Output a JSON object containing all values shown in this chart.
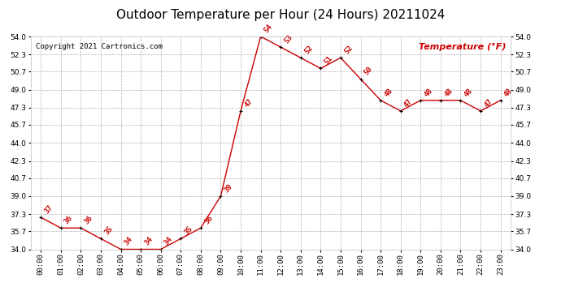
{
  "title": "Outdoor Temperature per Hour (24 Hours) 20211024",
  "copyright_text": "Copyright 2021 Cartronics.com",
  "legend_text": "Temperature (°F)",
  "hours": [
    "00:00",
    "01:00",
    "02:00",
    "03:00",
    "04:00",
    "05:00",
    "06:00",
    "07:00",
    "08:00",
    "09:00",
    "10:00",
    "11:00",
    "12:00",
    "13:00",
    "14:00",
    "15:00",
    "16:00",
    "17:00",
    "18:00",
    "19:00",
    "20:00",
    "21:00",
    "22:00",
    "23:00"
  ],
  "temperatures": [
    37,
    36,
    36,
    35,
    34,
    34,
    34,
    35,
    36,
    39,
    47,
    54,
    53,
    52,
    51,
    52,
    50,
    48,
    47,
    48,
    48,
    48,
    47,
    48
  ],
  "ylim": [
    34.0,
    54.0
  ],
  "yticks": [
    34.0,
    35.7,
    37.3,
    39.0,
    40.7,
    42.3,
    44.0,
    45.7,
    47.3,
    49.0,
    50.7,
    52.3,
    54.0
  ],
  "line_color": "#cc0000",
  "marker_color": "#000000",
  "label_color": "#cc0000",
  "bg_color": "#ffffff",
  "grid_color": "#b0b0b0",
  "title_color": "#000000",
  "copyright_color": "#000000",
  "legend_color": "#cc0000",
  "title_fontsize": 11,
  "label_fontsize": 6.5,
  "tick_fontsize": 6.5,
  "copyright_fontsize": 6.5,
  "legend_fontsize": 8
}
